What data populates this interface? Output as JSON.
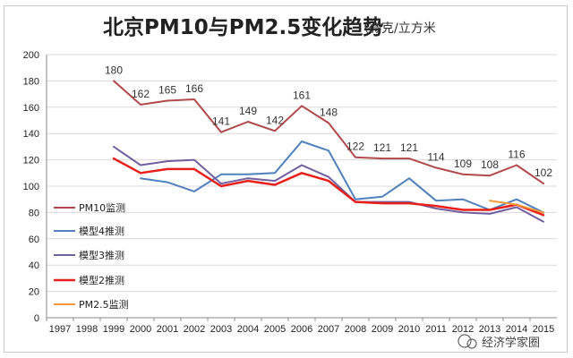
{
  "title": "北京PM10与PM2.5变化趋势",
  "unit": "（微克/立方米",
  "watermark": "经济学家圈",
  "chart_data": {
    "type": "line",
    "title": "北京PM10与PM2.5变化趋势",
    "ylim": [
      0,
      200
    ],
    "yticks": [
      0,
      20,
      40,
      60,
      80,
      100,
      120,
      140,
      160,
      180,
      200
    ],
    "categories": [
      "1997",
      "1998",
      "1999",
      "2000",
      "2001",
      "2002",
      "2003",
      "2004",
      "2005",
      "2006",
      "2007",
      "2008",
      "2009",
      "2010",
      "2011",
      "2012",
      "2013",
      "2014",
      "2015"
    ],
    "grid": true,
    "legend_position": "left",
    "series": [
      {
        "name": "PM10监测",
        "color": "#b04a4a",
        "width": 2,
        "values": [
          null,
          null,
          180,
          162,
          165,
          166,
          141,
          149,
          142,
          161,
          148,
          122,
          121,
          121,
          114,
          109,
          108,
          116,
          102
        ],
        "labels": [
          null,
          null,
          "180",
          "162",
          "165",
          "166",
          "141",
          "149",
          "142",
          "161",
          "148",
          "122",
          "121",
          "121",
          "114",
          "109",
          "108",
          "116",
          "102"
        ]
      },
      {
        "name": "模型4推测",
        "color": "#4f81bd",
        "width": 2,
        "values": [
          null,
          null,
          null,
          106,
          103,
          96,
          109,
          109,
          110,
          134,
          127,
          90,
          92,
          106,
          89,
          90,
          82,
          90,
          80
        ]
      },
      {
        "name": "模型3推测",
        "color": "#7060a0",
        "width": 2,
        "values": [
          null,
          null,
          130,
          116,
          119,
          120,
          102,
          106,
          104,
          116,
          107,
          88,
          88,
          88,
          83,
          80,
          79,
          84,
          73
        ]
      },
      {
        "name": "模型2推测",
        "color": "#e8201a",
        "width": 2.5,
        "values": [
          null,
          null,
          121,
          110,
          113,
          113,
          100,
          104,
          101,
          110,
          104,
          88,
          87,
          87,
          85,
          82,
          82,
          86,
          78
        ]
      },
      {
        "name": "PM2.5监测",
        "color": "#f29b3c",
        "width": 2,
        "values": [
          null,
          null,
          null,
          null,
          null,
          null,
          null,
          null,
          null,
          null,
          null,
          null,
          null,
          null,
          null,
          null,
          89,
          86,
          80
        ]
      }
    ]
  }
}
